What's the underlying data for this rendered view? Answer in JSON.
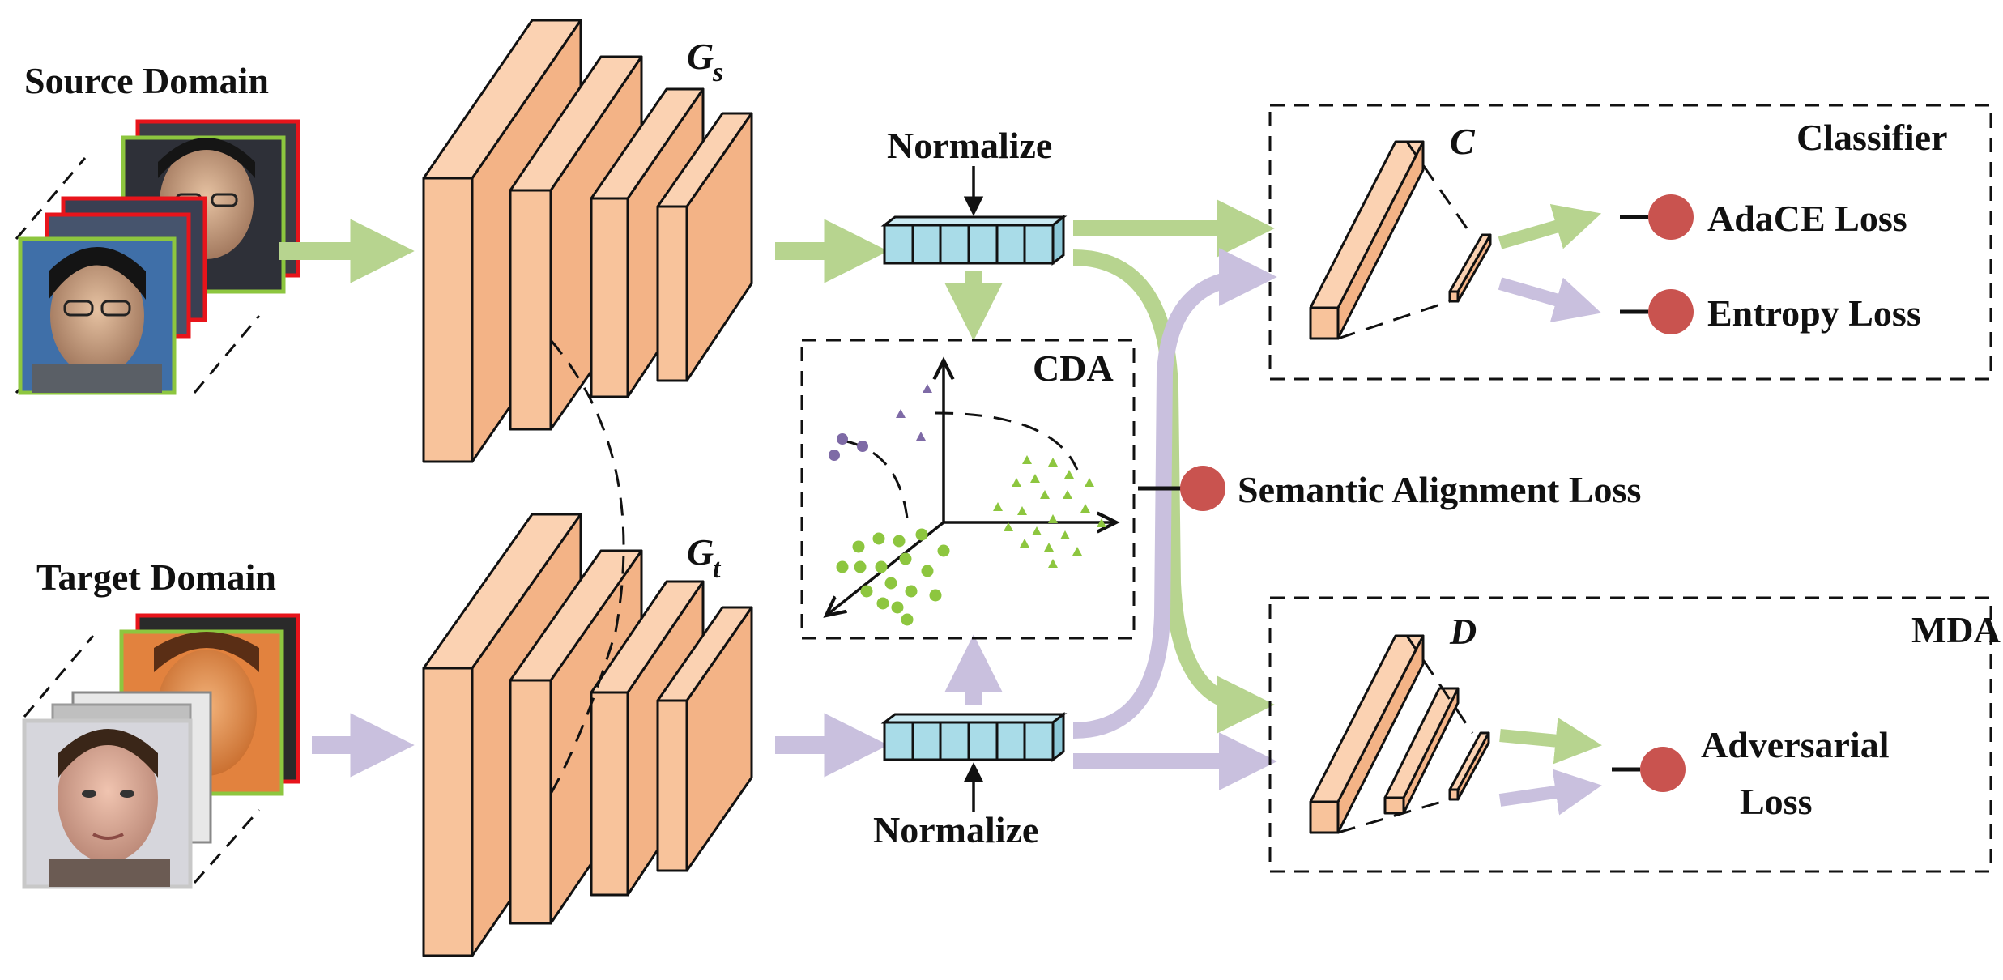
{
  "source_domain": {
    "label": "Source Domain"
  },
  "target_domain": {
    "label": "Target Domain"
  },
  "generators": {
    "source": {
      "symbol": "G",
      "subscript": "s"
    },
    "target": {
      "symbol": "G",
      "subscript": "t"
    }
  },
  "normalize": {
    "top": "Normalize",
    "bottom": "Normalize"
  },
  "cda": {
    "label": "CDA"
  },
  "classifier": {
    "title": "Classifier",
    "symbol": "C",
    "losses": [
      "AdaCE Loss",
      "Entropy Loss"
    ]
  },
  "semantic_alignment": {
    "label": "Semantic Alignment Loss"
  },
  "mda": {
    "title": "MDA",
    "symbol": "D",
    "loss_lines": [
      "Adversarial",
      "Loss"
    ]
  },
  "colors": {
    "block": "#F8C39B",
    "feature": "#A9DCE8",
    "source_arrow": "#B7D48F",
    "target_arrow": "#C9C0DE",
    "loss_dot": "#C9534F",
    "source_points": "#8DC63F",
    "target_points": "#7E6AA6",
    "face_frame_source": "#8DC63F",
    "face_frame_red": "#E8141B"
  }
}
